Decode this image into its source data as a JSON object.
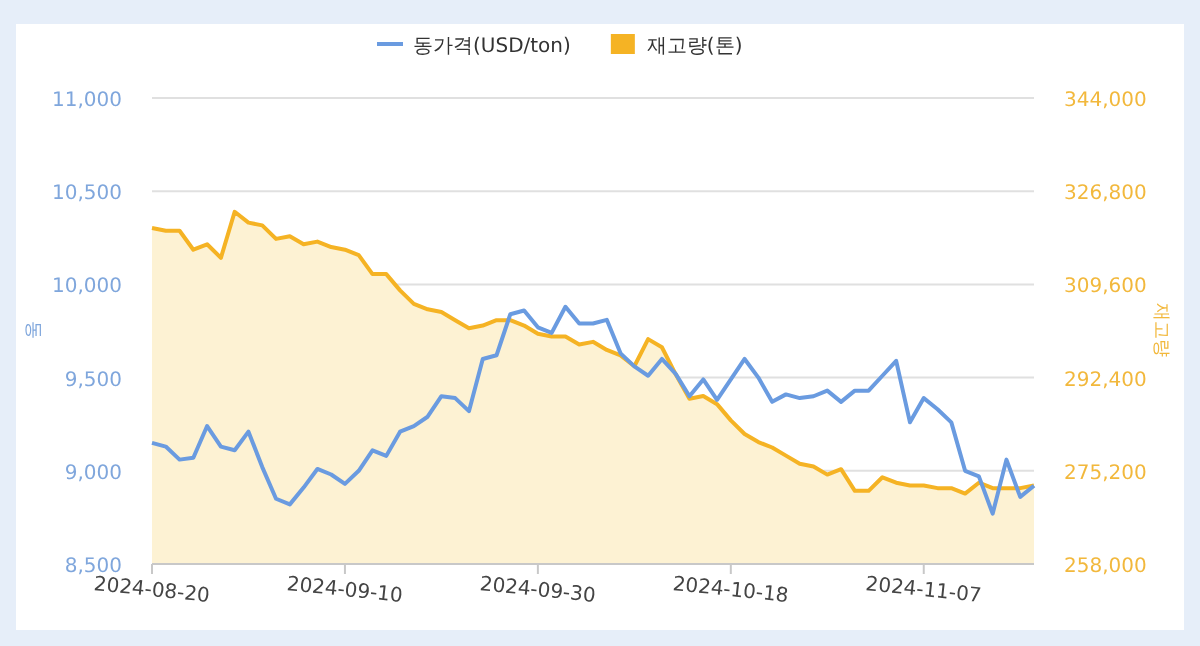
{
  "chart_data": {
    "type": "line",
    "ylabel": "동",
    "y2label": "재고량",
    "legend": "top",
    "grid": "y",
    "marker": "none",
    "line_style": "solid",
    "categories": [
      "2024-08-20",
      null,
      null,
      null,
      null,
      null,
      null,
      null,
      null,
      null,
      null,
      null,
      null,
      null,
      "2024-09-10",
      null,
      null,
      null,
      null,
      null,
      null,
      null,
      null,
      null,
      null,
      null,
      null,
      null,
      "2024-09-30",
      null,
      null,
      null,
      null,
      null,
      null,
      null,
      null,
      null,
      null,
      null,
      null,
      null,
      "2024-10-18",
      null,
      null,
      null,
      null,
      null,
      null,
      null,
      null,
      null,
      null,
      null,
      null,
      null,
      "2024-11-07",
      null,
      null,
      null,
      null,
      null,
      null,
      null,
      null
    ],
    "ylim": [
      8500,
      11000
    ],
    "yticks": [
      {
        "value": 8500,
        "label": "8,500"
      },
      {
        "value": 9000,
        "label": "9,000"
      },
      {
        "value": 9500,
        "label": "9,500"
      },
      {
        "value": 10000,
        "label": "10,000"
      },
      {
        "value": 10500,
        "label": "10,500"
      },
      {
        "value": 11000,
        "label": "11,000"
      }
    ],
    "y2lim": [
      258000,
      344000
    ],
    "y2ticks": [
      {
        "value": 258000,
        "label": "258,000"
      },
      {
        "value": 275200,
        "label": "275,200"
      },
      {
        "value": 292400,
        "label": "292,400"
      },
      {
        "value": 309600,
        "label": "309,600"
      },
      {
        "value": 326800,
        "label": "326,800"
      },
      {
        "value": 344000,
        "label": "344,000"
      }
    ],
    "series": [
      {
        "name": "동가격(USD/ton)",
        "color": "#6a9be0",
        "values": [
          9150,
          9130,
          9060,
          9070,
          9240,
          9130,
          9110,
          9210,
          9020,
          8850,
          8820,
          8910,
          9010,
          8980,
          8930,
          9000,
          9110,
          9080,
          9210,
          9240,
          9290,
          9400,
          9390,
          9320,
          9600,
          9620,
          9840,
          9860,
          9770,
          9740,
          9880,
          9790,
          9790,
          9810,
          9630,
          9560,
          9510,
          9600,
          9520,
          9400,
          9490,
          9380,
          9490,
          9600,
          9500,
          9370,
          9410,
          9390,
          9400,
          9430,
          9370,
          9430,
          9430,
          9510,
          9590,
          9260,
          9390,
          9330,
          9260,
          9000,
          8970,
          8770,
          9060,
          8860,
          8920
        ]
      },
      {
        "name": "재고량(톤)",
        "type": "area",
        "axis": "y2",
        "color": "#f5b324",
        "values": [
          320000,
          319500,
          319500,
          316000,
          317000,
          314500,
          323000,
          321000,
          320500,
          318000,
          318500,
          317000,
          317500,
          316500,
          316000,
          315000,
          311500,
          311500,
          308500,
          306000,
          305000,
          304500,
          303000,
          301500,
          302000,
          303000,
          303000,
          302000,
          300500,
          300000,
          300000,
          298500,
          299000,
          297500,
          296500,
          294500,
          299500,
          298000,
          293000,
          288500,
          289000,
          287500,
          284500,
          282000,
          280500,
          279500,
          278000,
          276500,
          276000,
          274500,
          275500,
          271500,
          271500,
          274000,
          273000,
          272500,
          272500,
          272000,
          272000,
          271000,
          273000,
          272000,
          272000,
          272000,
          272500
        ]
      }
    ]
  }
}
